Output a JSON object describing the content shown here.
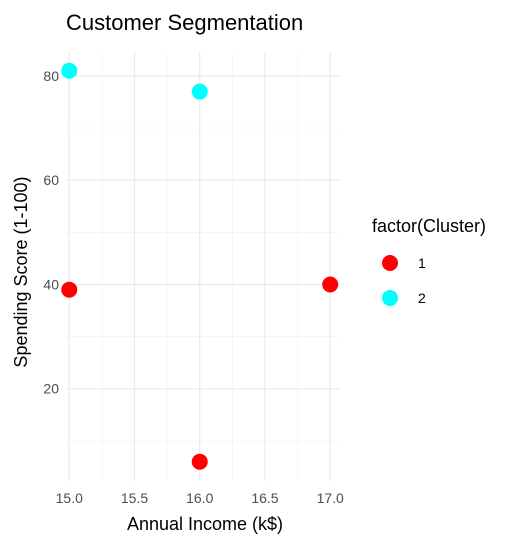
{
  "chart_data": {
    "type": "scatter",
    "title": "Customer Segmentation",
    "xlabel": "Annual Income (k$)",
    "ylabel": "Spending Score (1-100)",
    "xlim": [
      14.975,
      17.075
    ],
    "ylim": [
      2.3,
      84.6
    ],
    "x_ticks": [
      15.0,
      15.5,
      16.0,
      16.5,
      17.0
    ],
    "x_tick_labels": [
      "15.0",
      "15.5",
      "16.0",
      "16.5",
      "17.0"
    ],
    "y_ticks": [
      20,
      40,
      60,
      80
    ],
    "y_tick_labels": [
      "20",
      "40",
      "60",
      "80"
    ],
    "grid": true,
    "legend": {
      "title": "factor(Cluster)",
      "position": "right",
      "entries": [
        {
          "label": "1",
          "color": "#ff0000"
        },
        {
          "label": "2",
          "color": "#00ffff"
        }
      ]
    },
    "series": [
      {
        "name": "1",
        "color": "#ff0000",
        "points": [
          {
            "x": 15,
            "y": 39
          },
          {
            "x": 16,
            "y": 6
          },
          {
            "x": 17,
            "y": 40
          }
        ]
      },
      {
        "name": "2",
        "color": "#00ffff",
        "points": [
          {
            "x": 15,
            "y": 81
          },
          {
            "x": 16,
            "y": 77
          }
        ]
      }
    ]
  }
}
